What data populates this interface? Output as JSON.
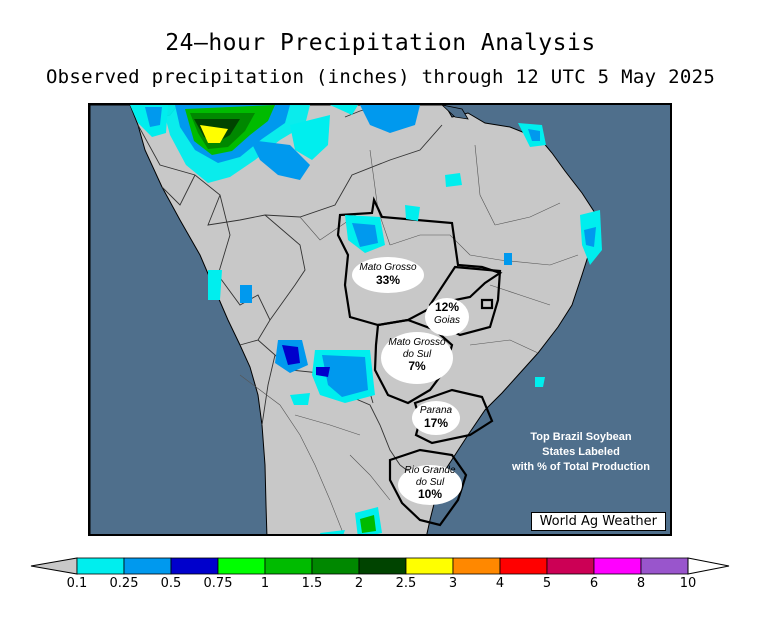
{
  "title": "24—hour Precipitation Analysis",
  "subtitle": "Observed precipitation (inches) through 12 UTC 5 May 2025",
  "credit": "World Ag Weather",
  "note_lines": [
    "Top Brazil Soybean",
    "States Labeled",
    "with % of Total Production"
  ],
  "states": [
    {
      "name": "Mato Grosso",
      "pct": "33%"
    },
    {
      "name": "Goias",
      "pct": "12%"
    },
    {
      "name": "Mato Grosso do Sul",
      "name_lines": [
        "Mato Grosso",
        "do Sul"
      ],
      "pct": "7%"
    },
    {
      "name": "Parana",
      "pct": "17%"
    },
    {
      "name": "Rio Grande do Sul",
      "name_lines": [
        "Rio Grande",
        "do Sul"
      ],
      "pct": "10%"
    }
  ],
  "legend": {
    "ticks": [
      "0.1",
      "0.25",
      "0.5",
      "0.75",
      "1",
      "1.5",
      "2",
      "2.5",
      "3",
      "4",
      "5",
      "6",
      "8",
      "10"
    ],
    "colors": [
      "#00eeee",
      "#0099ee",
      "#0000cc",
      "#00ff00",
      "#00bb00",
      "#008800",
      "#004400",
      "#ffff00",
      "#ff8800",
      "#ff0000",
      "#cc0055",
      "#ff00ff",
      "#9955cc"
    ],
    "below_color": "#c8c8c8",
    "above_color": "#ffffff"
  },
  "colors": {
    "ocean": "#4f6f8c",
    "land": "#c8c8c8"
  }
}
